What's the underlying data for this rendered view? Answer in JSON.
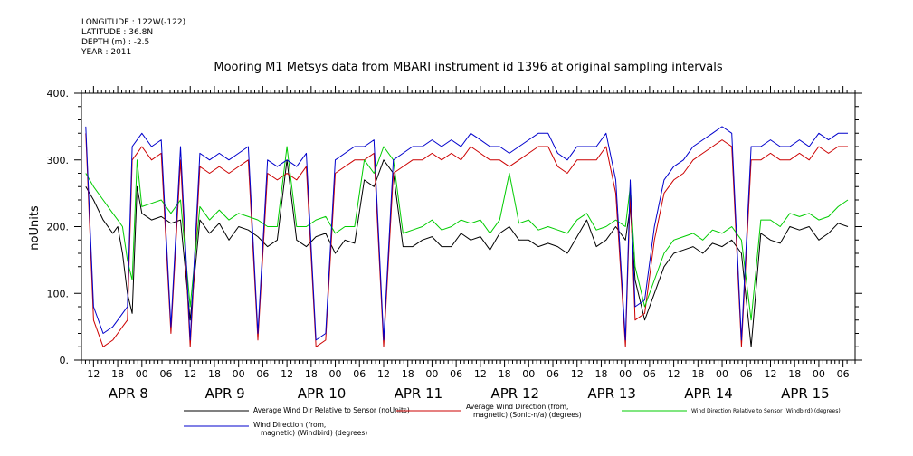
{
  "meta": {
    "longitude": "LONGITUDE : 122W(-122)",
    "latitude": "LATITUDE : 36.8N",
    "depth": "DEPTH (m) : -2.5",
    "year": "YEAR : 2011"
  },
  "chart_data": {
    "type": "line",
    "title": "Mooring M1 Metsys data from MBARI instrument id 1396 at original sampling intervals",
    "ylabel": "noUnits",
    "xlabel": "",
    "ylim": [
      0,
      400
    ],
    "yticks": [
      0,
      100,
      200,
      300,
      400
    ],
    "xlim": [
      7.375,
      15.375
    ],
    "hour_tick_labels": [
      "12",
      "18",
      "00",
      "06",
      "12",
      "18",
      "00",
      "06",
      "12",
      "18",
      "00",
      "06",
      "12",
      "18",
      "00",
      "06",
      "12",
      "18",
      "00",
      "06",
      "12",
      "18",
      "00",
      "06",
      "12",
      "18",
      "00",
      "06",
      "12",
      "18",
      "00",
      "06"
    ],
    "day_labels": [
      "APR  8",
      "APR  9",
      "APR 10",
      "APR 11",
      "APR 12",
      "APR 13",
      "APR 14",
      "APR 15"
    ],
    "grid": false,
    "legend_placement": "bottom",
    "x_unit": "day of April 2011",
    "series": [
      {
        "name": "Average Wind Dir Relative to Sensor (noUnits)",
        "color": "#000000",
        "x": [
          7.42,
          7.5,
          7.6,
          7.7,
          7.75,
          7.8,
          7.85,
          7.9,
          7.95,
          8.0,
          8.1,
          8.2,
          8.3,
          8.4,
          8.5,
          8.6,
          8.7,
          8.8,
          8.9,
          9.0,
          9.1,
          9.2,
          9.3,
          9.4,
          9.5,
          9.6,
          9.7,
          9.8,
          9.9,
          10.0,
          10.1,
          10.2,
          10.3,
          10.4,
          10.5,
          10.6,
          10.7,
          10.8,
          10.9,
          11.0,
          11.1,
          11.2,
          11.3,
          11.4,
          11.5,
          11.6,
          11.7,
          11.8,
          11.9,
          12.0,
          12.1,
          12.2,
          12.3,
          12.4,
          12.5,
          12.6,
          12.7,
          12.8,
          12.9,
          13.0,
          13.05,
          13.1,
          13.2,
          13.3,
          13.4,
          13.5,
          13.6,
          13.7,
          13.8,
          13.9,
          14.0,
          14.1,
          14.2,
          14.3,
          14.4,
          14.5,
          14.6,
          14.7,
          14.8,
          14.9,
          15.0,
          15.1,
          15.2,
          15.3
        ],
        "y": [
          260,
          240,
          210,
          190,
          200,
          160,
          100,
          70,
          260,
          220,
          210,
          215,
          205,
          210,
          60,
          210,
          190,
          205,
          180,
          200,
          195,
          185,
          170,
          180,
          300,
          180,
          170,
          185,
          190,
          160,
          180,
          175,
          270,
          260,
          300,
          280,
          170,
          170,
          180,
          185,
          170,
          170,
          190,
          180,
          185,
          165,
          190,
          200,
          180,
          180,
          170,
          175,
          170,
          160,
          185,
          210,
          170,
          180,
          200,
          180,
          230,
          120,
          60,
          100,
          140,
          160,
          165,
          170,
          160,
          175,
          170,
          180,
          160,
          20,
          190,
          180,
          175,
          200,
          195,
          200,
          180,
          190,
          205,
          200
        ]
      },
      {
        "name": "Average Wind Direction (from, magnetic) (Sonic-n/a) (degrees)",
        "color": "#cc0000",
        "x": [
          7.42,
          7.5,
          7.6,
          7.7,
          7.75,
          7.8,
          7.85,
          7.9,
          7.95,
          8.0,
          8.1,
          8.2,
          8.3,
          8.4,
          8.5,
          8.6,
          8.7,
          8.8,
          8.9,
          9.0,
          9.1,
          9.2,
          9.3,
          9.4,
          9.5,
          9.6,
          9.7,
          9.8,
          9.9,
          10.0,
          10.1,
          10.2,
          10.3,
          10.4,
          10.5,
          10.6,
          10.7,
          10.8,
          10.9,
          11.0,
          11.1,
          11.2,
          11.3,
          11.4,
          11.5,
          11.6,
          11.7,
          11.8,
          11.9,
          12.0,
          12.1,
          12.2,
          12.3,
          12.4,
          12.5,
          12.6,
          12.7,
          12.8,
          12.9,
          13.0,
          13.05,
          13.1,
          13.2,
          13.3,
          13.4,
          13.5,
          13.6,
          13.7,
          13.8,
          13.9,
          14.0,
          14.1,
          14.2,
          14.3,
          14.4,
          14.5,
          14.6,
          14.7,
          14.8,
          14.9,
          15.0,
          15.1,
          15.2,
          15.3
        ],
        "y": [
          340,
          60,
          20,
          30,
          40,
          50,
          60,
          300,
          310,
          320,
          300,
          310,
          40,
          300,
          20,
          290,
          280,
          290,
          280,
          290,
          300,
          30,
          280,
          270,
          280,
          270,
          290,
          20,
          30,
          280,
          290,
          300,
          300,
          310,
          20,
          280,
          290,
          300,
          300,
          310,
          300,
          310,
          300,
          320,
          310,
          300,
          300,
          290,
          300,
          310,
          320,
          320,
          290,
          280,
          300,
          300,
          300,
          320,
          250,
          20,
          250,
          60,
          70,
          180,
          250,
          270,
          280,
          300,
          310,
          320,
          330,
          320,
          20,
          300,
          300,
          310,
          300,
          300,
          310,
          300,
          320,
          310,
          320,
          320
        ]
      },
      {
        "name": "Wind Direction Relative to Sensor (Windbird) (degrees)",
        "color": "#00cc00",
        "x": [
          7.42,
          7.5,
          7.6,
          7.7,
          7.75,
          7.8,
          7.85,
          7.9,
          7.95,
          8.0,
          8.1,
          8.2,
          8.3,
          8.4,
          8.5,
          8.6,
          8.7,
          8.8,
          8.9,
          9.0,
          9.1,
          9.2,
          9.3,
          9.4,
          9.5,
          9.6,
          9.7,
          9.8,
          9.9,
          10.0,
          10.1,
          10.2,
          10.3,
          10.4,
          10.5,
          10.6,
          10.7,
          10.8,
          10.9,
          11.0,
          11.1,
          11.2,
          11.3,
          11.4,
          11.5,
          11.6,
          11.7,
          11.8,
          11.9,
          12.0,
          12.1,
          12.2,
          12.3,
          12.4,
          12.5,
          12.6,
          12.7,
          12.8,
          12.9,
          13.0,
          13.05,
          13.1,
          13.2,
          13.3,
          13.4,
          13.5,
          13.6,
          13.7,
          13.8,
          13.9,
          14.0,
          14.1,
          14.2,
          14.3,
          14.4,
          14.5,
          14.6,
          14.7,
          14.8,
          14.9,
          15.0,
          15.1,
          15.2,
          15.3
        ],
        "y": [
          280,
          260,
          240,
          220,
          210,
          200,
          150,
          120,
          300,
          230,
          235,
          240,
          220,
          240,
          80,
          230,
          210,
          225,
          210,
          220,
          215,
          210,
          200,
          200,
          320,
          200,
          200,
          210,
          215,
          190,
          200,
          200,
          300,
          280,
          320,
          300,
          190,
          195,
          200,
          210,
          195,
          200,
          210,
          205,
          210,
          190,
          210,
          280,
          205,
          210,
          195,
          200,
          195,
          190,
          210,
          220,
          195,
          200,
          210,
          200,
          260,
          140,
          80,
          120,
          160,
          180,
          185,
          190,
          180,
          195,
          190,
          200,
          180,
          60,
          210,
          210,
          200,
          220,
          215,
          220,
          210,
          215,
          230,
          240
        ]
      },
      {
        "name": "Wind Direction (from, magnetic) (Windbird) (degrees)",
        "color": "#0000cc",
        "x": [
          7.42,
          7.5,
          7.6,
          7.7,
          7.75,
          7.8,
          7.85,
          7.9,
          7.95,
          8.0,
          8.1,
          8.2,
          8.3,
          8.4,
          8.5,
          8.6,
          8.7,
          8.8,
          8.9,
          9.0,
          9.1,
          9.2,
          9.3,
          9.4,
          9.5,
          9.6,
          9.7,
          9.8,
          9.9,
          10.0,
          10.1,
          10.2,
          10.3,
          10.4,
          10.5,
          10.6,
          10.7,
          10.8,
          10.9,
          11.0,
          11.1,
          11.2,
          11.3,
          11.4,
          11.5,
          11.6,
          11.7,
          11.8,
          11.9,
          12.0,
          12.1,
          12.2,
          12.3,
          12.4,
          12.5,
          12.6,
          12.7,
          12.8,
          12.9,
          13.0,
          13.05,
          13.1,
          13.2,
          13.3,
          13.4,
          13.5,
          13.6,
          13.7,
          13.8,
          13.9,
          14.0,
          14.1,
          14.2,
          14.3,
          14.4,
          14.5,
          14.6,
          14.7,
          14.8,
          14.9,
          15.0,
          15.1,
          15.2,
          15.3
        ],
        "y": [
          350,
          80,
          40,
          50,
          60,
          70,
          80,
          320,
          330,
          340,
          320,
          330,
          50,
          320,
          30,
          310,
          300,
          310,
          300,
          310,
          320,
          40,
          300,
          290,
          300,
          290,
          310,
          30,
          40,
          300,
          310,
          320,
          320,
          330,
          30,
          300,
          310,
          320,
          320,
          330,
          320,
          330,
          320,
          340,
          330,
          320,
          320,
          310,
          320,
          330,
          340,
          340,
          310,
          300,
          320,
          320,
          320,
          340,
          270,
          30,
          270,
          80,
          90,
          200,
          270,
          290,
          300,
          320,
          330,
          340,
          350,
          340,
          30,
          320,
          320,
          330,
          320,
          320,
          330,
          320,
          340,
          330,
          340,
          340
        ]
      }
    ]
  }
}
